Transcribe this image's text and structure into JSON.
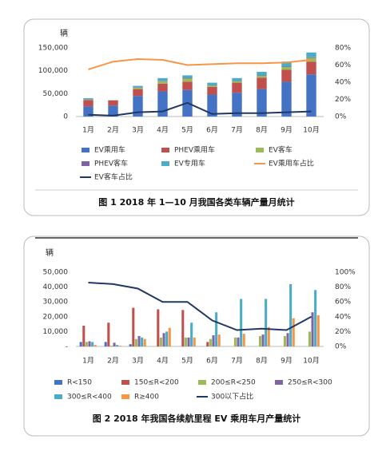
{
  "chart_data": [
    {
      "type": "bar",
      "stacked": true,
      "title": "图 1  2018 年 1—10 月我国各类车辆产量月统计",
      "y_label": "辆",
      "categories": [
        "1月",
        "2月",
        "3月",
        "4月",
        "5月",
        "6月",
        "7月",
        "8月",
        "9月",
        "10月"
      ],
      "ylim": [
        0,
        150000
      ],
      "yticks": [
        0,
        {
          "value": 50000,
          "label": "50,000"
        },
        {
          "value": 100000,
          "label": "100,000"
        },
        {
          "value": 150000,
          "label": "150,000"
        }
      ],
      "y2lim": [
        0,
        80
      ],
      "y2ticks": [
        {
          "value": 0,
          "label": "0%"
        },
        {
          "value": 20,
          "label": "20%"
        },
        {
          "value": 40,
          "label": "40%"
        },
        {
          "value": 60,
          "label": "60%"
        },
        {
          "value": 80,
          "label": "80%"
        }
      ],
      "grid": false,
      "series": [
        {
          "name": "EV乘用车",
          "color": "#4472c4",
          "values": [
            22000,
            24000,
            45000,
            55000,
            58000,
            48000,
            52000,
            60000,
            76000,
            92000
          ]
        },
        {
          "name": "PHEV乘用车",
          "color": "#c0504d",
          "values": [
            14000,
            11000,
            15000,
            17000,
            18000,
            17000,
            22000,
            25000,
            26000,
            28000
          ]
        },
        {
          "name": "EV客车",
          "color": "#9bbb59",
          "values": [
            1000,
            500,
            3000,
            5000,
            7000,
            2500,
            3000,
            4000,
            6000,
            8000
          ]
        },
        {
          "name": "PHEV客车",
          "color": "#8064a2",
          "values": [
            500,
            200,
            1000,
            1000,
            1500,
            500,
            500,
            800,
            1000,
            1500
          ]
        },
        {
          "name": "EV专用车",
          "color": "#4bacc6",
          "values": [
            2500,
            300,
            3000,
            6000,
            5500,
            6000,
            6500,
            8000,
            11000,
            10500
          ]
        },
        {
          "name": "EV乘用车占比",
          "color": "#f79646",
          "type": "line",
          "axis": "y2",
          "values": [
            55,
            64,
            67,
            66,
            60,
            61,
            62,
            62,
            63,
            66
          ]
        },
        {
          "name": "EV客车占比",
          "color": "#1f3864",
          "type": "line",
          "axis": "y2",
          "values": [
            2,
            1,
            5,
            6,
            16,
            3,
            4,
            4,
            5,
            6
          ]
        }
      ]
    },
    {
      "type": "bar",
      "stacked": false,
      "title": "图 2  2018 年我国各续航里程 EV 乘用车月产量统计",
      "y_label": "辆",
      "categories": [
        "1月",
        "2月",
        "3月",
        "4月",
        "5月",
        "6月",
        "7月",
        "8月",
        "9月",
        "10月"
      ],
      "ylim": [
        0,
        50000
      ],
      "yticks": [
        {
          "value": 0,
          "label": "-"
        },
        {
          "value": 10000,
          "label": "10,000"
        },
        {
          "value": 20000,
          "label": "20,000"
        },
        {
          "value": 30000,
          "label": "30,000"
        },
        {
          "value": 40000,
          "label": "40,000"
        },
        {
          "value": 50000,
          "label": "50,000"
        }
      ],
      "y2lim": [
        0,
        100
      ],
      "y2ticks": [
        {
          "value": 0,
          "label": "0%"
        },
        {
          "value": 20,
          "label": "20%"
        },
        {
          "value": 40,
          "label": "40%"
        },
        {
          "value": 60,
          "label": "60%"
        },
        {
          "value": 80,
          "label": "80%"
        },
        {
          "value": 100,
          "label": "100%"
        }
      ],
      "grid": false,
      "series": [
        {
          "name": "R<150",
          "color": "#4472c4",
          "values": [
            3000,
            3000,
            1500,
            0,
            0,
            0,
            0,
            0,
            0,
            0
          ]
        },
        {
          "name": "150≤R<200",
          "color": "#c0504d",
          "values": [
            14000,
            16000,
            26000,
            25000,
            24500,
            3000,
            0,
            0,
            0,
            0
          ]
        },
        {
          "name": "200≤R<250",
          "color": "#9bbb59",
          "values": [
            3000,
            500,
            5000,
            6000,
            6000,
            5000,
            6000,
            7000,
            7000,
            10000
          ]
        },
        {
          "name": "250≤R<300",
          "color": "#8064a2",
          "values": [
            3500,
            2500,
            7000,
            9000,
            6000,
            7500,
            6000,
            8000,
            9000,
            23000
          ]
        },
        {
          "name": "300≤R<400",
          "color": "#4bacc6",
          "values": [
            3000,
            1000,
            6000,
            10000,
            16000,
            23000,
            32000,
            32000,
            42000,
            38000
          ]
        },
        {
          "name": "R≥400",
          "color": "#f79646",
          "values": [
            1000,
            500,
            5000,
            12500,
            6000,
            8000,
            8500,
            13000,
            19000,
            21000
          ]
        },
        {
          "name": "300以下占比",
          "color": "#1f3864",
          "type": "line",
          "axis": "y2",
          "values": [
            86,
            84,
            78,
            60,
            60,
            35,
            22,
            24,
            22,
            40
          ]
        }
      ]
    }
  ]
}
